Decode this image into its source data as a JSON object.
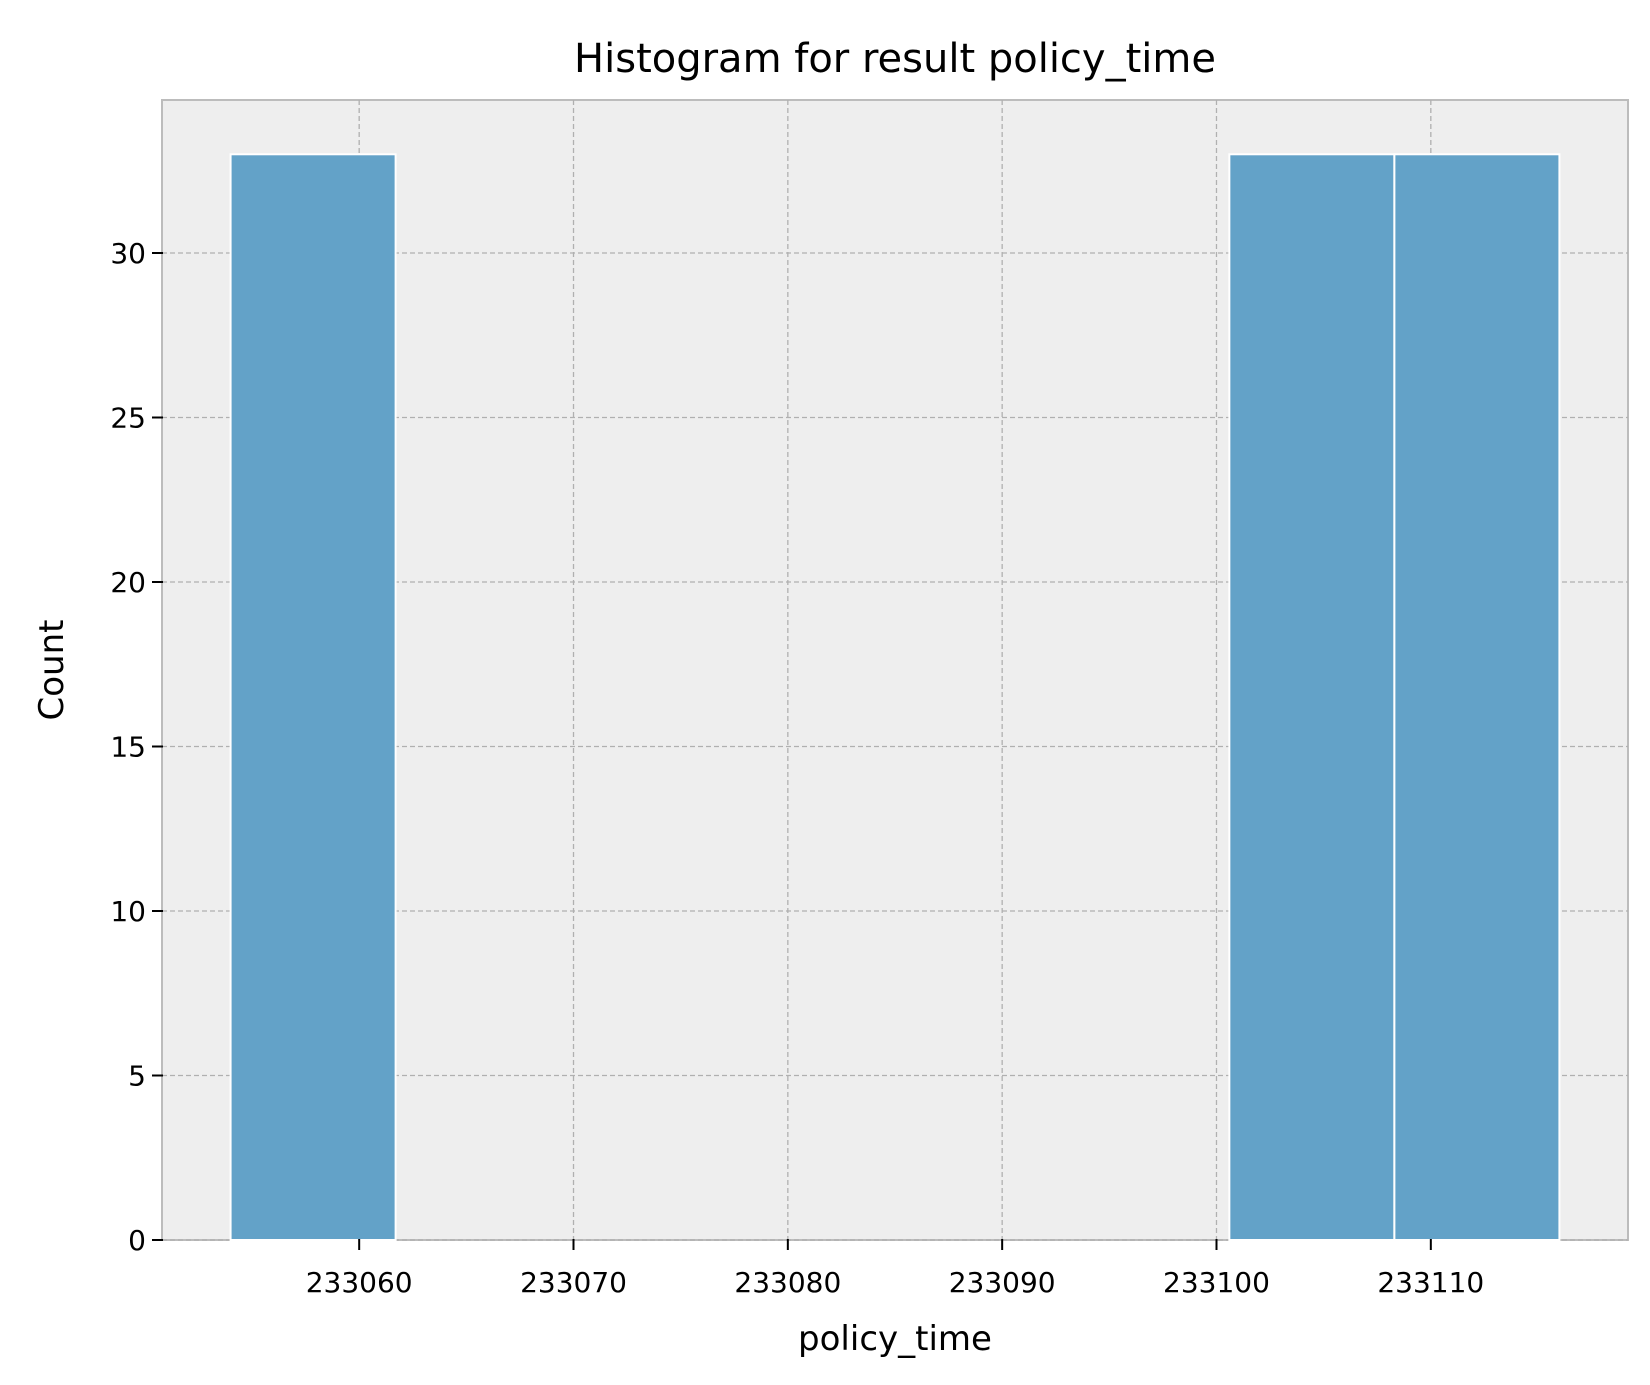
{
  "chart_data": {
    "type": "bar",
    "title": "Histogram for result policy_time",
    "xlabel": "policy_time",
    "ylabel": "Count",
    "bins": [
      {
        "x0": 233054.0,
        "x1": 233061.7,
        "count": 33
      },
      {
        "x0": 233100.6,
        "x1": 233108.3,
        "count": 33
      },
      {
        "x0": 233108.3,
        "x1": 233116.0,
        "count": 33
      }
    ],
    "xlim": [
      233050.8,
      233119.2
    ],
    "ylim": [
      0,
      34.65
    ],
    "xticks": [
      233060,
      233070,
      233080,
      233090,
      233100,
      233110
    ],
    "yticks": [
      0,
      5,
      10,
      15,
      20,
      25,
      30
    ],
    "grid": true,
    "bar_color": "#63a2c8",
    "background_color": "#eeeeee"
  }
}
